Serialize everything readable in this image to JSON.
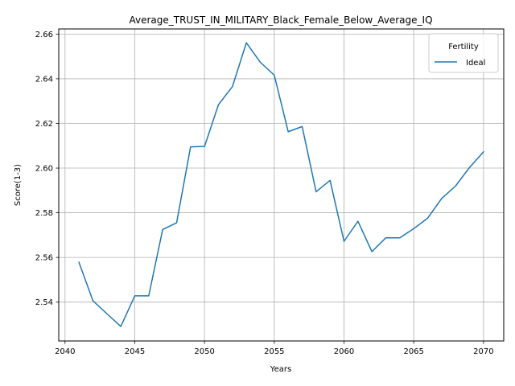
{
  "chart_data": {
    "type": "line",
    "title": "Average_TRUST_IN_MILITARY_Black_Female_Below_Average_IQ",
    "xlabel": "Years",
    "ylabel": "Score(1-3)",
    "xlim": [
      2039.55,
      2071.45
    ],
    "ylim": [
      2.5226,
      2.6623
    ],
    "xticks": [
      2040,
      2045,
      2050,
      2055,
      2060,
      2065,
      2070
    ],
    "yticks": [
      2.54,
      2.56,
      2.58,
      2.6,
      2.62,
      2.64,
      2.66
    ],
    "ytick_labels": [
      "2.54",
      "2.56",
      "2.58",
      "2.60",
      "2.62",
      "2.64",
      "2.66"
    ],
    "grid": true,
    "legend": {
      "title": "Fertility",
      "position": "upper-right"
    },
    "series": [
      {
        "name": "Ideal",
        "color": "#1f77b4",
        "x": [
          2041,
          2042,
          2043,
          2044,
          2045,
          2046,
          2047,
          2048,
          2049,
          2050,
          2051,
          2052,
          2053,
          2054,
          2055,
          2056,
          2057,
          2058,
          2059,
          2060,
          2061,
          2062,
          2063,
          2064,
          2065,
          2066,
          2067,
          2068,
          2069,
          2070
        ],
        "y": [
          2.5578,
          2.5406,
          2.5348,
          2.5291,
          2.5428,
          2.5428,
          2.5725,
          2.5755,
          2.6095,
          2.6097,
          2.6284,
          2.6365,
          2.6561,
          2.6474,
          2.6416,
          2.6163,
          2.6186,
          2.5894,
          2.5945,
          2.5672,
          2.5762,
          2.5626,
          2.5688,
          2.5688,
          2.5729,
          2.5776,
          2.5864,
          2.592,
          2.6003,
          2.6073
        ]
      }
    ]
  }
}
